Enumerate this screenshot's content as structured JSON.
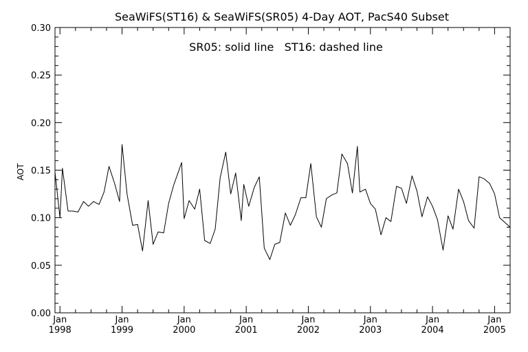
{
  "chart_data": {
    "type": "line",
    "title": "SeaWiFS(ST16) & SeaWiFS(SR05) 4-Day AOT, PacS40 Subset",
    "annotation": "SR05: solid line   ST16: dashed line",
    "ylabel": "AOT",
    "xlabel": "",
    "ylim": [
      0.0,
      0.3
    ],
    "xlim": [
      1997.92,
      2005.25
    ],
    "y_ticks": [
      "0.00",
      "0.05",
      "0.10",
      "0.15",
      "0.20",
      "0.25",
      "0.30"
    ],
    "x_ticks": [
      {
        "month": "Jan",
        "year": "1998",
        "x": 1998.0
      },
      {
        "month": "Jan",
        "year": "1999",
        "x": 1999.0
      },
      {
        "month": "Jan",
        "year": "2000",
        "x": 2000.0
      },
      {
        "month": "Jan",
        "year": "2001",
        "x": 2001.0
      },
      {
        "month": "Jan",
        "year": "2002",
        "x": 2002.0
      },
      {
        "month": "Jan",
        "year": "2003",
        "x": 2003.0
      },
      {
        "month": "Jan",
        "year": "2004",
        "x": 2004.0
      },
      {
        "month": "Jan",
        "year": "2005",
        "x": 2005.0
      }
    ],
    "grid": false,
    "series": [
      {
        "line_style": "solid",
        "color": "#000000",
        "points": [
          [
            1997.92,
            0.148
          ],
          [
            1998.0,
            0.1
          ],
          [
            1998.04,
            0.152
          ],
          [
            1998.13,
            0.107
          ],
          [
            1998.21,
            0.107
          ],
          [
            1998.29,
            0.106
          ],
          [
            1998.38,
            0.117
          ],
          [
            1998.46,
            0.112
          ],
          [
            1998.54,
            0.117
          ],
          [
            1998.63,
            0.114
          ],
          [
            1998.71,
            0.127
          ],
          [
            1998.79,
            0.154
          ],
          [
            1998.88,
            0.136
          ],
          [
            1998.96,
            0.117
          ],
          [
            1999.0,
            0.177
          ],
          [
            1999.08,
            0.125
          ],
          [
            1999.17,
            0.092
          ],
          [
            1999.25,
            0.093
          ],
          [
            1999.33,
            0.065
          ],
          [
            1999.42,
            0.118
          ],
          [
            1999.5,
            0.072
          ],
          [
            1999.58,
            0.085
          ],
          [
            1999.67,
            0.084
          ],
          [
            1999.75,
            0.115
          ],
          [
            1999.83,
            0.134
          ],
          [
            1999.96,
            0.158
          ],
          [
            2000.0,
            0.099
          ],
          [
            2000.08,
            0.118
          ],
          [
            2000.17,
            0.109
          ],
          [
            2000.25,
            0.13
          ],
          [
            2000.33,
            0.076
          ],
          [
            2000.42,
            0.073
          ],
          [
            2000.5,
            0.088
          ],
          [
            2000.58,
            0.142
          ],
          [
            2000.67,
            0.169
          ],
          [
            2000.75,
            0.125
          ],
          [
            2000.83,
            0.147
          ],
          [
            2000.92,
            0.097
          ],
          [
            2000.96,
            0.135
          ],
          [
            2001.04,
            0.112
          ],
          [
            2001.13,
            0.132
          ],
          [
            2001.21,
            0.143
          ],
          [
            2001.29,
            0.068
          ],
          [
            2001.38,
            0.056
          ],
          [
            2001.46,
            0.072
          ],
          [
            2001.54,
            0.074
          ],
          [
            2001.63,
            0.105
          ],
          [
            2001.71,
            0.092
          ],
          [
            2001.79,
            0.103
          ],
          [
            2001.88,
            0.121
          ],
          [
            2001.96,
            0.121
          ],
          [
            2002.04,
            0.157
          ],
          [
            2002.13,
            0.101
          ],
          [
            2002.21,
            0.09
          ],
          [
            2002.29,
            0.12
          ],
          [
            2002.38,
            0.124
          ],
          [
            2002.46,
            0.126
          ],
          [
            2002.54,
            0.167
          ],
          [
            2002.63,
            0.157
          ],
          [
            2002.71,
            0.126
          ],
          [
            2002.79,
            0.175
          ],
          [
            2002.83,
            0.127
          ],
          [
            2002.92,
            0.13
          ],
          [
            2003.0,
            0.115
          ],
          [
            2003.08,
            0.109
          ],
          [
            2003.17,
            0.082
          ],
          [
            2003.25,
            0.1
          ],
          [
            2003.33,
            0.096
          ],
          [
            2003.42,
            0.133
          ],
          [
            2003.5,
            0.131
          ],
          [
            2003.58,
            0.115
          ],
          [
            2003.67,
            0.144
          ],
          [
            2003.75,
            0.128
          ],
          [
            2003.83,
            0.101
          ],
          [
            2003.92,
            0.122
          ],
          [
            2004.0,
            0.112
          ],
          [
            2004.08,
            0.098
          ],
          [
            2004.17,
            0.066
          ],
          [
            2004.25,
            0.102
          ],
          [
            2004.33,
            0.088
          ],
          [
            2004.42,
            0.13
          ],
          [
            2004.5,
            0.117
          ],
          [
            2004.58,
            0.097
          ],
          [
            2004.67,
            0.089
          ],
          [
            2004.75,
            0.143
          ],
          [
            2004.83,
            0.141
          ],
          [
            2004.92,
            0.136
          ],
          [
            2005.0,
            0.125
          ],
          [
            2005.08,
            0.1
          ],
          [
            2005.25,
            0.09
          ]
        ]
      }
    ]
  }
}
